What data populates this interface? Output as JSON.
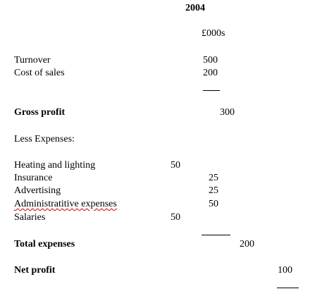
{
  "statement": {
    "year": "2004",
    "unit": "£000s",
    "turnover": {
      "label": "Turnover",
      "value": "500"
    },
    "cost_of_sales": {
      "label": "Cost of sales",
      "value": "200"
    },
    "gross_profit": {
      "label": "Gross profit",
      "value": "300"
    },
    "less_expenses_label": "Less Expenses:",
    "expenses": [
      {
        "label": "Heating and lighting",
        "value": "50"
      },
      {
        "label": "Insurance",
        "value": "25"
      },
      {
        "label": "Advertising",
        "value": "25"
      },
      {
        "label": "Administratitive expenses",
        "value": "50"
      },
      {
        "label": "Salaries",
        "value": "50"
      }
    ],
    "total_expenses": {
      "label": "Total expenses",
      "value": "200"
    },
    "net_profit": {
      "label": "Net profit",
      "value": "100"
    }
  }
}
